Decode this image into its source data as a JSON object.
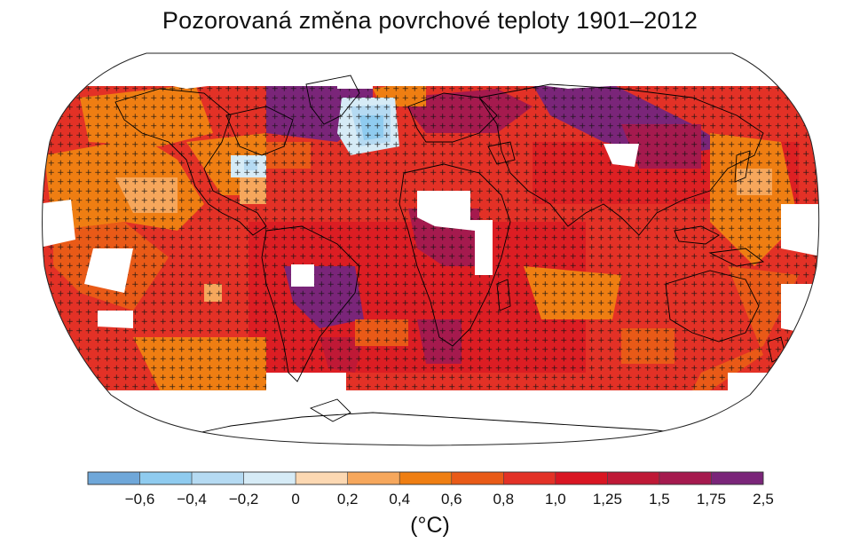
{
  "title": "Pozorovaná změna povrchové teploty 1901–2012",
  "legend": {
    "unit": "(°C)",
    "ticks": [
      "−0,6",
      "−0,4",
      "−0,2",
      "0",
      "0,2",
      "0,4",
      "0,6",
      "0,8",
      "1,0",
      "1,25",
      "1,5",
      "1,75",
      "2,5"
    ],
    "bin_edges": [
      -0.8,
      -0.6,
      -0.4,
      -0.2,
      0,
      0.2,
      0.4,
      0.6,
      0.8,
      1.0,
      1.25,
      1.5,
      1.75,
      2.5
    ],
    "colors": [
      "#6fa7d9",
      "#8fcbef",
      "#b5daf2",
      "#d6ebf6",
      "#fcd8b2",
      "#f6a75c",
      "#ef7e12",
      "#e95a17",
      "#e33126",
      "#d91522",
      "#bf1936",
      "#a51a4e",
      "#7a2579"
    ]
  },
  "map": {
    "projection": "Robinson",
    "no_data_color": "#ffffff",
    "significance_marker": "+",
    "coastline_color": "#000000"
  }
}
